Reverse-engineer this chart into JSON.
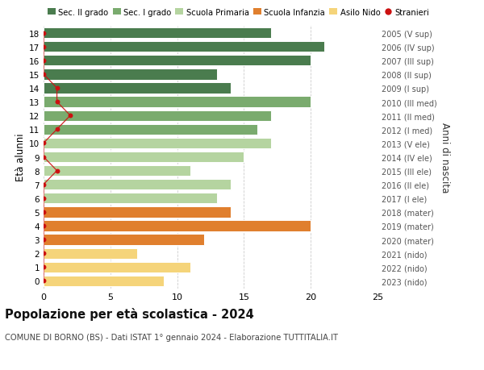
{
  "ages": [
    18,
    17,
    16,
    15,
    14,
    13,
    12,
    11,
    10,
    9,
    8,
    7,
    6,
    5,
    4,
    3,
    2,
    1,
    0
  ],
  "values": [
    17,
    21,
    20,
    13,
    14,
    20,
    17,
    16,
    17,
    15,
    11,
    14,
    13,
    14,
    20,
    12,
    7,
    11,
    9
  ],
  "right_labels": [
    "2005 (V sup)",
    "2006 (IV sup)",
    "2007 (III sup)",
    "2008 (II sup)",
    "2009 (I sup)",
    "2010 (III med)",
    "2011 (II med)",
    "2012 (I med)",
    "2013 (V ele)",
    "2014 (IV ele)",
    "2015 (III ele)",
    "2016 (II ele)",
    "2017 (I ele)",
    "2018 (mater)",
    "2019 (mater)",
    "2020 (mater)",
    "2021 (nido)",
    "2022 (nido)",
    "2023 (nido)"
  ],
  "bar_colors": [
    "#4a7c4e",
    "#4a7c4e",
    "#4a7c4e",
    "#4a7c4e",
    "#4a7c4e",
    "#7aab6e",
    "#7aab6e",
    "#7aab6e",
    "#b5d4a0",
    "#b5d4a0",
    "#b5d4a0",
    "#b5d4a0",
    "#b5d4a0",
    "#e07f2e",
    "#e07f2e",
    "#e07f2e",
    "#f5d47a",
    "#f5d47a",
    "#f5d47a"
  ],
  "stranieri_x": [
    0,
    0,
    0,
    0,
    1,
    1,
    2,
    1,
    0,
    0,
    1,
    0,
    0,
    0,
    0,
    0,
    0,
    0,
    0
  ],
  "title": "Popolazione per età scolastica - 2024",
  "subtitle": "COMUNE DI BORNO (BS) - Dati ISTAT 1° gennaio 2024 - Elaborazione TUTTITALIA.IT",
  "ylabel": "Età alunni",
  "right_ylabel": "Anni di nascita",
  "xlim": [
    0,
    25
  ],
  "xticks": [
    0,
    5,
    10,
    15,
    20,
    25
  ],
  "legend_labels": [
    "Sec. II grado",
    "Sec. I grado",
    "Scuola Primaria",
    "Scuola Infanzia",
    "Asilo Nido",
    "Stranieri"
  ],
  "legend_colors": [
    "#4a7c4e",
    "#7aab6e",
    "#b5d4a0",
    "#e07f2e",
    "#f5d47a",
    "#cc1111"
  ],
  "background_color": "#ffffff",
  "grid_color": "#cccccc",
  "stranieri_color": "#cc1111"
}
